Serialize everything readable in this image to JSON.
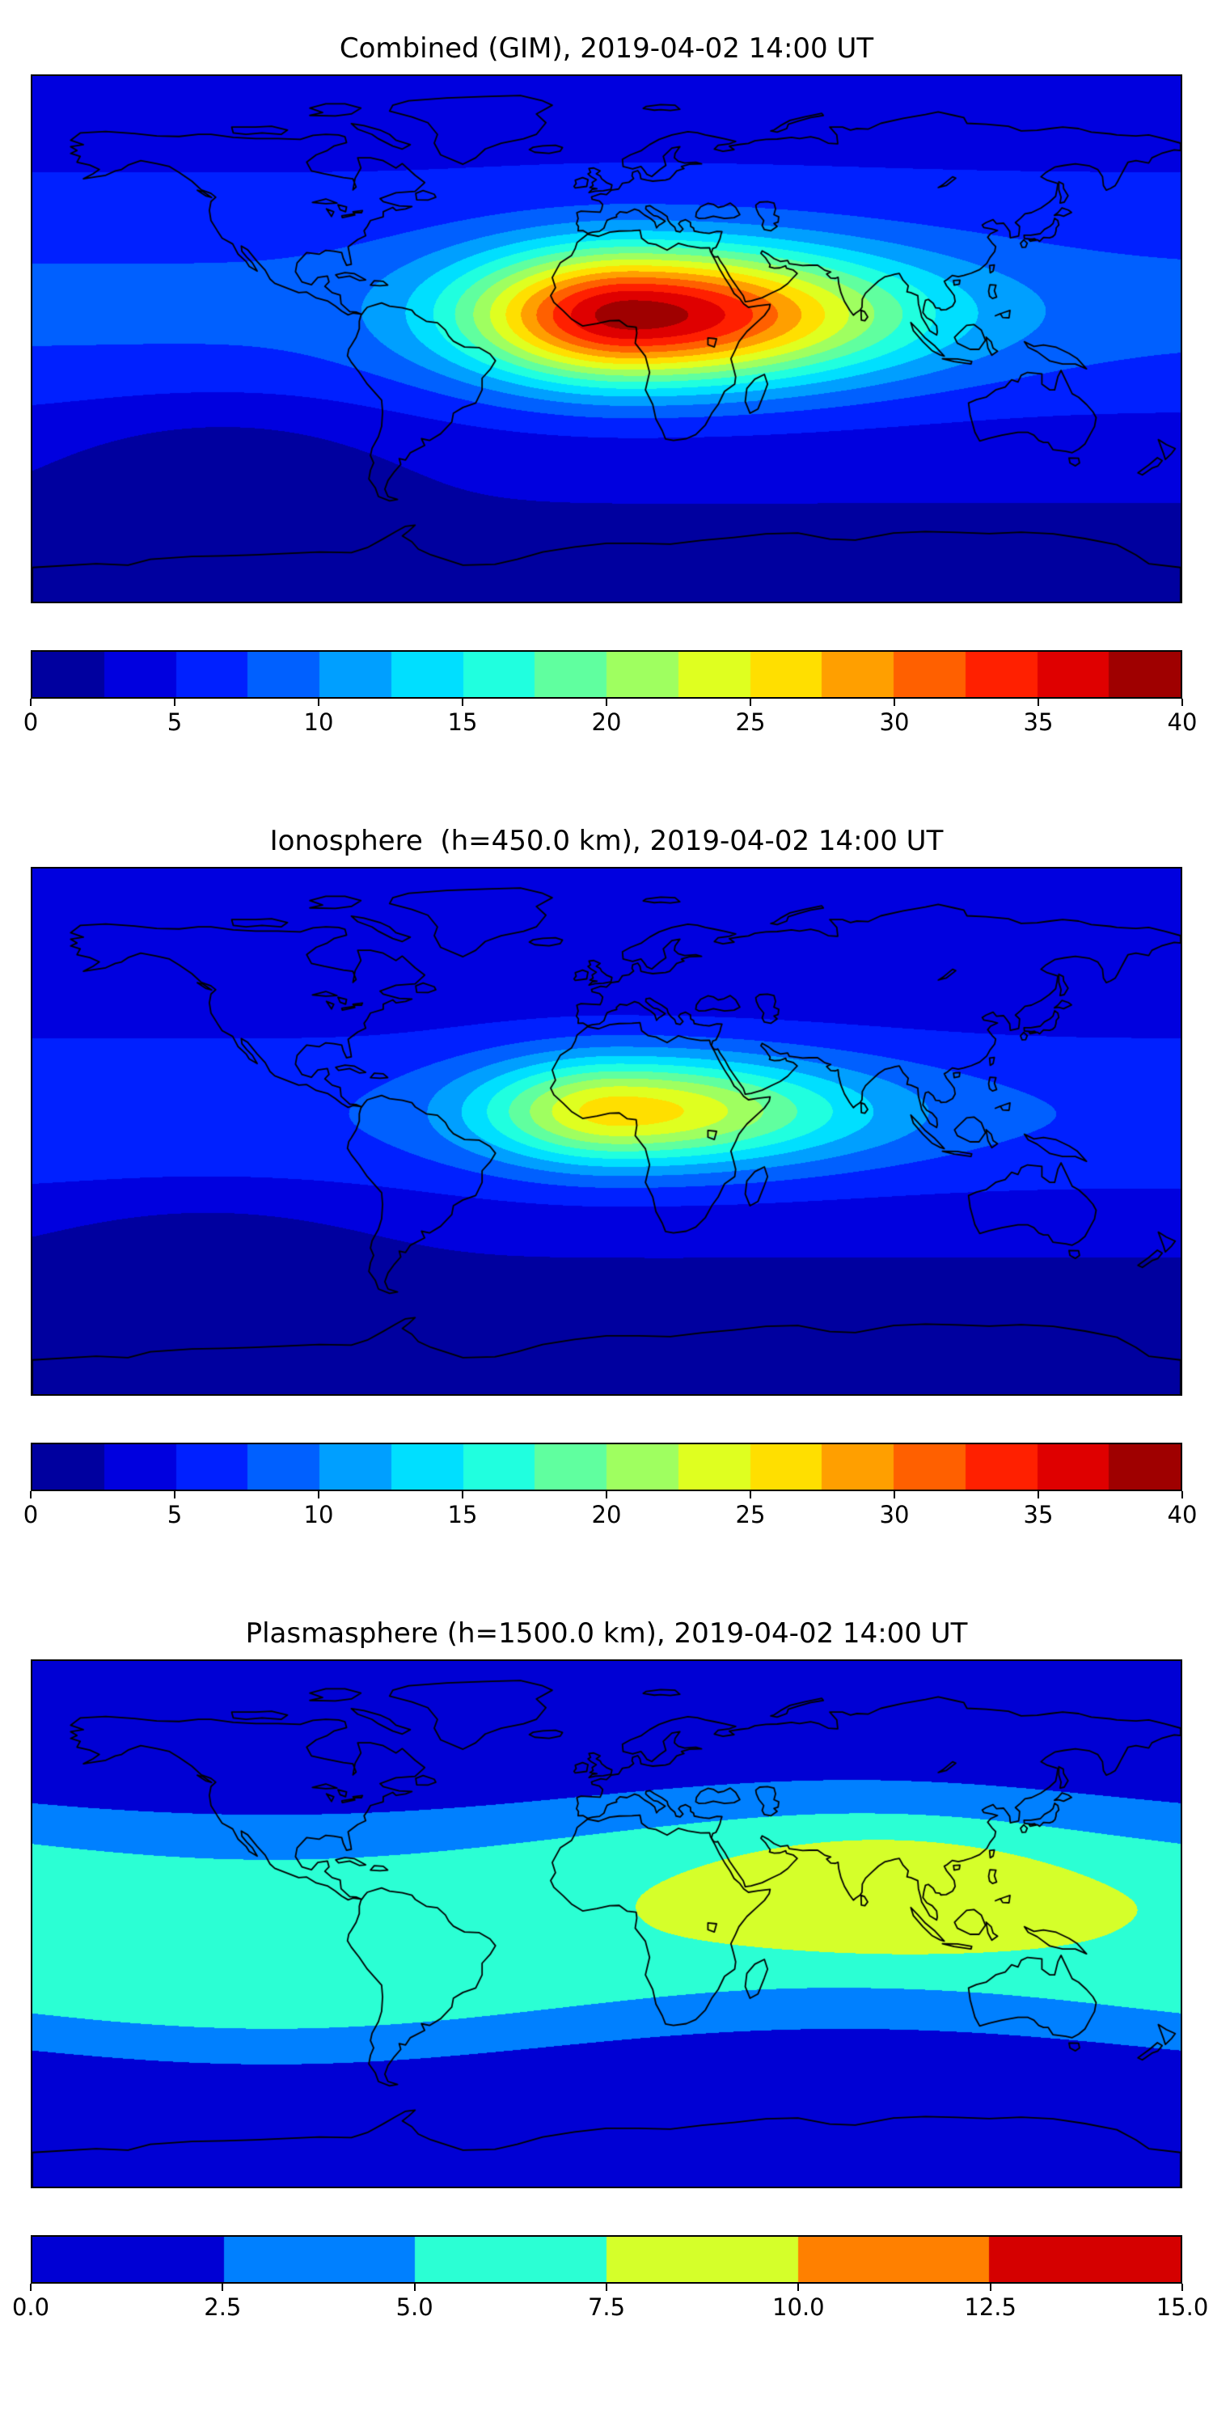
{
  "figure": {
    "background": "#ffffff",
    "text_color": "#000000",
    "colormap": "jet"
  },
  "chart_data": [
    {
      "type": "contour_map",
      "title": "Combined (GIM), 2019-04-02 14:00 UT",
      "projection": "equirectangular",
      "lon_range": [
        -180,
        180
      ],
      "lat_range": [
        -90,
        90
      ],
      "colormap": "jet",
      "grid": false,
      "levels": {
        "min": 0,
        "max": 40,
        "step": 2.5,
        "bands": 16
      },
      "colorbar_ticks": [
        "0",
        "5",
        "10",
        "15",
        "20",
        "25",
        "30",
        "35",
        "40"
      ],
      "peak_value": 39,
      "peak_location": {
        "lon": 8,
        "lat": 8
      },
      "field": {
        "offset": 2.0,
        "lat_terms": [
          {
            "amp": 6.0,
            "center": 10,
            "sigma": 42
          },
          {
            "amp": 2.2,
            "center": 90,
            "sigma": 45
          }
        ],
        "blobs": [
          {
            "amp": 31,
            "lon": 8,
            "lat": 8,
            "sx_east": 55,
            "sx_west": 36,
            "sy": 16
          },
          {
            "amp": -2.5,
            "lon": -120,
            "lat": -42,
            "sx": 35,
            "sy": 16
          }
        ]
      }
    },
    {
      "type": "contour_map",
      "title": "Ionosphere  (h=450.0 km), 2019-04-02 14:00 UT",
      "projection": "equirectangular",
      "lon_range": [
        -180,
        180
      ],
      "lat_range": [
        -90,
        90
      ],
      "colormap": "jet",
      "grid": false,
      "levels": {
        "min": 0,
        "max": 40,
        "step": 2.5,
        "bands": 16
      },
      "colorbar_ticks": [
        "0",
        "5",
        "10",
        "15",
        "20",
        "25",
        "30",
        "35",
        "40"
      ],
      "peak_value": 26.5,
      "peak_location": {
        "lon": 4,
        "lat": 7
      },
      "field": {
        "offset": 1.6,
        "lat_terms": [
          {
            "amp": 5.4,
            "center": 5,
            "sigma": 36
          },
          {
            "amp": 1.6,
            "center": 90,
            "sigma": 45
          }
        ],
        "blobs": [
          {
            "amp": 19.5,
            "lon": 4,
            "lat": 7,
            "sx_east": 50,
            "sx_west": 31,
            "sy": 13
          },
          {
            "amp": -2.0,
            "lon": -125,
            "lat": -40,
            "sx": 35,
            "sy": 15
          }
        ]
      }
    },
    {
      "type": "contour_map",
      "title": "Plasmasphere (h=1500.0 km), 2019-04-02 14:00 UT",
      "projection": "equirectangular",
      "lon_range": [
        -180,
        180
      ],
      "lat_range": [
        -90,
        90
      ],
      "colormap": "jet",
      "grid": false,
      "levels": {
        "min": 0,
        "max": 15,
        "step": 2.5,
        "bands": 6
      },
      "colorbar_ticks": [
        "0.0",
        "2.5",
        "5.0",
        "7.5",
        "10.0",
        "12.5",
        "15.0"
      ],
      "peak_value": 9.9,
      "peak_location": {
        "lon": 88,
        "lat": 12
      },
      "field": {
        "offset": 1.1,
        "lat_terms": [
          {
            "amp": 1.8,
            "center": 2,
            "sigma": 60
          }
        ],
        "band": {
          "amp": 4.5,
          "sigma": 33,
          "power": 4,
          "eq_amp": 8,
          "eq_phase": 15
        },
        "blobs": [
          {
            "amp": 2.5,
            "lon": 88,
            "lat": 12,
            "sx": 32,
            "sy": 13
          }
        ]
      }
    }
  ]
}
